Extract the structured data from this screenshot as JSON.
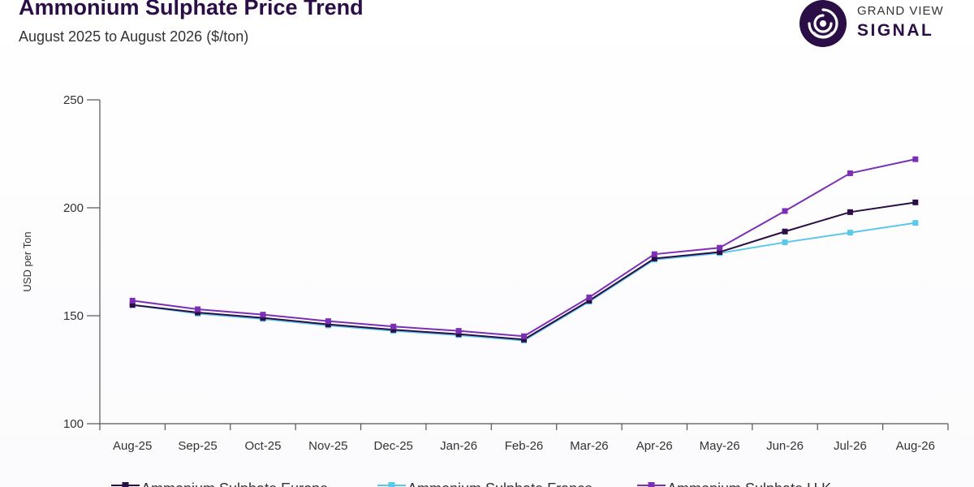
{
  "header": {
    "title": "Ammonium Sulphate Price Trend",
    "subtitle": "August 2025 to August 2026 ($/ton)"
  },
  "brand": {
    "line1": "GRAND VIEW",
    "line2": "SIGNAL",
    "logo_icon": "signal-waves-icon",
    "color": "#2b0e45"
  },
  "chart_data": {
    "type": "line",
    "title": "Ammonium Sulphate Price Trend",
    "subtitle": "August 2025 to August 2026 ($/ton)",
    "xlabel": "",
    "ylabel": "USD per Ton",
    "ylim": [
      100,
      250
    ],
    "yticks": [
      100,
      150,
      200,
      250
    ],
    "grid": false,
    "legend_position": "bottom",
    "categories": [
      "Aug-25",
      "Sep-25",
      "Oct-25",
      "Nov-25",
      "Dec-25",
      "Jan-26",
      "Feb-26",
      "Mar-26",
      "Apr-26",
      "May-26",
      "Jun-26",
      "Jul-26",
      "Aug-26"
    ],
    "series": [
      {
        "name": "Ammonium Sulphate Europe",
        "color": "#2b0e45",
        "values": [
          155,
          151.5,
          149,
          146,
          143.5,
          141.5,
          139,
          157,
          176.5,
          179.5,
          189,
          198,
          202.5
        ]
      },
      {
        "name": "Ammonium Sulphate France",
        "color": "#5bc8ea",
        "values": [
          155,
          151,
          148.5,
          145.5,
          143,
          141,
          138.5,
          156.5,
          176,
          179,
          184,
          188.5,
          193
        ]
      },
      {
        "name": "Ammonium Sulphate U.K.",
        "color": "#7b2fb5",
        "values": [
          157,
          153,
          150.5,
          147.5,
          145,
          143,
          140.5,
          158.5,
          178.5,
          181.5,
          198.5,
          216,
          222.5
        ]
      }
    ]
  }
}
